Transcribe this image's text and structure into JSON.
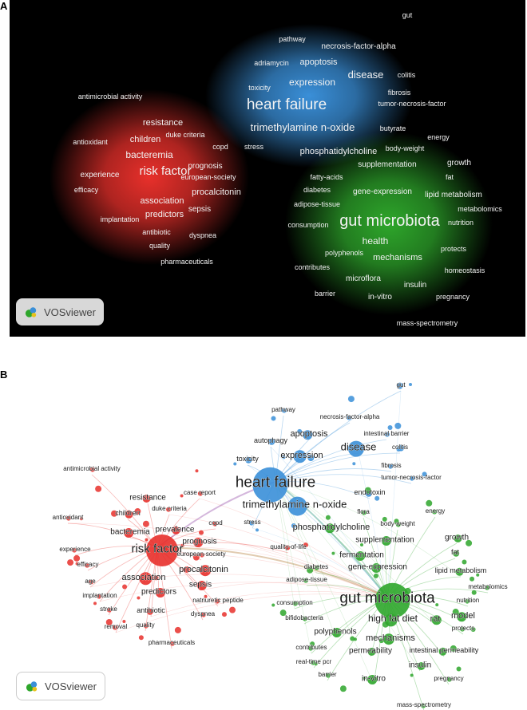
{
  "panels": {
    "a_label": "A",
    "b_label": "B",
    "watermark": "VOSviewer"
  },
  "colors": {
    "red_cluster": "#e8302b",
    "blue_cluster": "#3a8fd8",
    "green_cluster": "#2ea62b",
    "density_bg": "#000000"
  },
  "clusters": {
    "red": [
      "antimicrobial activity",
      "resistance",
      "duke criteria",
      "children",
      "antioxidant",
      "bacteremia",
      "copd",
      "risk factor",
      "prognosis",
      "experience",
      "european-society",
      "efficacy",
      "association",
      "procalcitonin",
      "predictors",
      "implantation",
      "sepsis",
      "antibiotic",
      "dyspnea",
      "quality",
      "pharmaceuticals",
      "case report",
      "prevalence",
      "age",
      "stroke",
      "removal",
      "natriuretic peptide",
      "quality-of-life"
    ],
    "blue": [
      "gut",
      "pathway",
      "necrosis-factor-alpha",
      "adriamycin",
      "apoptosis",
      "disease",
      "colitis",
      "expression",
      "toxicity",
      "fibrosis",
      "tumor-necrosis-factor",
      "heart failure",
      "trimethylamine n-oxide",
      "stress",
      "autophagy",
      "intestinal barrier",
      "endotoxin"
    ],
    "green": [
      "butyrate",
      "energy",
      "body-weight",
      "phosphatidylcholine",
      "supplementation",
      "growth",
      "fatty-acids",
      "fat",
      "diabetes",
      "gene-expression",
      "lipid metabolism",
      "adipose-tissue",
      "metabolomics",
      "gut microbiota",
      "consumption",
      "nutrition",
      "health",
      "polyphenols",
      "mechanisms",
      "protects",
      "contributes",
      "homeostasis",
      "microflora",
      "insulin",
      "barrier",
      "in-vitro",
      "pregnancy",
      "mass-spectrometry",
      "flora",
      "fermentation",
      "high fat diet",
      "rat",
      "model",
      "bifidobacteria",
      "permeability",
      "intestinal permeability",
      "real-time pcr"
    ]
  },
  "density_labels": [
    {
      "text": "gut",
      "c": "blue"
    },
    {
      "text": "pathway",
      "c": "blue"
    },
    {
      "text": "necrosis-factor-alpha",
      "c": "blue"
    },
    {
      "text": "adriamycin",
      "c": "blue"
    },
    {
      "text": "apoptosis",
      "c": "blue"
    },
    {
      "text": "disease",
      "c": "blue"
    },
    {
      "text": "colitis",
      "c": "blue"
    },
    {
      "text": "expression",
      "c": "blue"
    },
    {
      "text": "toxicity",
      "c": "blue"
    },
    {
      "text": "fibrosis",
      "c": "blue"
    },
    {
      "text": "tumor-necrosis-factor",
      "c": "blue"
    },
    {
      "text": "antimicrobial activity",
      "c": "red"
    },
    {
      "text": "heart failure",
      "c": "blue"
    },
    {
      "text": "resistance",
      "c": "red"
    },
    {
      "text": "duke criteria",
      "c": "red"
    },
    {
      "text": "trimethylamine n-oxide",
      "c": "blue"
    },
    {
      "text": "butyrate",
      "c": "green"
    },
    {
      "text": "energy",
      "c": "green"
    },
    {
      "text": "antioxidant",
      "c": "red"
    },
    {
      "text": "children",
      "c": "red"
    },
    {
      "text": "copd",
      "c": "red"
    },
    {
      "text": "stress",
      "c": "blue"
    },
    {
      "text": "body-weight",
      "c": "green"
    },
    {
      "text": "bacteremia",
      "c": "red"
    },
    {
      "text": "phosphatidylcholine",
      "c": "green"
    },
    {
      "text": "growth",
      "c": "green"
    },
    {
      "text": "prognosis",
      "c": "red"
    },
    {
      "text": "supplementation",
      "c": "green"
    },
    {
      "text": "risk factor",
      "c": "red"
    },
    {
      "text": "experience",
      "c": "red"
    },
    {
      "text": "european-society",
      "c": "red"
    },
    {
      "text": "fatty-acids",
      "c": "green"
    },
    {
      "text": "fat",
      "c": "green"
    },
    {
      "text": "efficacy",
      "c": "red"
    },
    {
      "text": "diabetes",
      "c": "green"
    },
    {
      "text": "gene-expression",
      "c": "green"
    },
    {
      "text": "lipid metabolism",
      "c": "green"
    },
    {
      "text": "association",
      "c": "red"
    },
    {
      "text": "procalcitonin",
      "c": "red"
    },
    {
      "text": "adipose-tissue",
      "c": "green"
    },
    {
      "text": "sepsis",
      "c": "red"
    },
    {
      "text": "metabolomics",
      "c": "green"
    },
    {
      "text": "predictors",
      "c": "red"
    },
    {
      "text": "implantation",
      "c": "red"
    },
    {
      "text": "gut microbiota",
      "c": "green"
    },
    {
      "text": "consumption",
      "c": "green"
    },
    {
      "text": "nutrition",
      "c": "green"
    },
    {
      "text": "antibiotic",
      "c": "red"
    },
    {
      "text": "dyspnea",
      "c": "red"
    },
    {
      "text": "health",
      "c": "green"
    },
    {
      "text": "quality",
      "c": "red"
    },
    {
      "text": "polyphenols",
      "c": "green"
    },
    {
      "text": "protects",
      "c": "green"
    },
    {
      "text": "mechanisms",
      "c": "green"
    },
    {
      "text": "pharmaceuticals",
      "c": "red"
    },
    {
      "text": "contributes",
      "c": "green"
    },
    {
      "text": "homeostasis",
      "c": "green"
    },
    {
      "text": "microflora",
      "c": "green"
    },
    {
      "text": "insulin",
      "c": "green"
    },
    {
      "text": "barrier",
      "c": "green"
    },
    {
      "text": "in-vitro",
      "c": "green"
    },
    {
      "text": "pregnancy",
      "c": "green"
    },
    {
      "text": "mass-spectrometry",
      "c": "green"
    }
  ],
  "network_labels": [
    {
      "text": "gut",
      "c": "blue"
    },
    {
      "text": "pathway",
      "c": "blue"
    },
    {
      "text": "necrosis-factor-alpha",
      "c": "blue"
    },
    {
      "text": "autophagy",
      "c": "blue"
    },
    {
      "text": "apoptosis",
      "c": "blue"
    },
    {
      "text": "intestinal barrier",
      "c": "blue"
    },
    {
      "text": "disease",
      "c": "blue"
    },
    {
      "text": "colitis",
      "c": "blue"
    },
    {
      "text": "expression",
      "c": "blue"
    },
    {
      "text": "toxicity",
      "c": "blue"
    },
    {
      "text": "fibrosis",
      "c": "blue"
    },
    {
      "text": "antimicrobial activity",
      "c": "red"
    },
    {
      "text": "heart failure",
      "c": "blue"
    },
    {
      "text": "tumor-necrosis-factor",
      "c": "blue"
    },
    {
      "text": "resistance",
      "c": "red"
    },
    {
      "text": "case report",
      "c": "red"
    },
    {
      "text": "endotoxin",
      "c": "blue"
    },
    {
      "text": "children",
      "c": "red"
    },
    {
      "text": "duke criteria",
      "c": "red"
    },
    {
      "text": "trimethylamine n-oxide",
      "c": "blue"
    },
    {
      "text": "energy",
      "c": "green"
    },
    {
      "text": "antioxidant",
      "c": "red"
    },
    {
      "text": "copd",
      "c": "red"
    },
    {
      "text": "flora",
      "c": "green"
    },
    {
      "text": "stress",
      "c": "blue"
    },
    {
      "text": "body-weight",
      "c": "green"
    },
    {
      "text": "bacteremia",
      "c": "red"
    },
    {
      "text": "prevalence",
      "c": "red"
    },
    {
      "text": "phosphatidylcholine",
      "c": "green"
    },
    {
      "text": "growth",
      "c": "green"
    },
    {
      "text": "prognosis",
      "c": "red"
    },
    {
      "text": "supplementation",
      "c": "green"
    },
    {
      "text": "experience",
      "c": "red"
    },
    {
      "text": "risk factor",
      "c": "red"
    },
    {
      "text": "quality-of-life",
      "c": "red"
    },
    {
      "text": "european-society",
      "c": "red"
    },
    {
      "text": "fermentation",
      "c": "green"
    },
    {
      "text": "fat",
      "c": "green"
    },
    {
      "text": "efficacy",
      "c": "red"
    },
    {
      "text": "diabetes",
      "c": "green"
    },
    {
      "text": "gene-expression",
      "c": "green"
    },
    {
      "text": "procalcitonin",
      "c": "red"
    },
    {
      "text": "lipid metabolism",
      "c": "green"
    },
    {
      "text": "association",
      "c": "red"
    },
    {
      "text": "adipose-tissue",
      "c": "green"
    },
    {
      "text": "sepsis",
      "c": "red"
    },
    {
      "text": "metabolomics",
      "c": "green"
    },
    {
      "text": "gut microbiota",
      "c": "green"
    },
    {
      "text": "implantation",
      "c": "red"
    },
    {
      "text": "predictors",
      "c": "red"
    },
    {
      "text": "natriuretic peptide",
      "c": "red"
    },
    {
      "text": "consumption",
      "c": "green"
    },
    {
      "text": "nutrition",
      "c": "green"
    },
    {
      "text": "stroke",
      "c": "red"
    },
    {
      "text": "antibiotic",
      "c": "red"
    },
    {
      "text": "dyspnea",
      "c": "red"
    },
    {
      "text": "high fat diet",
      "c": "green"
    },
    {
      "text": "rat",
      "c": "green"
    },
    {
      "text": "model",
      "c": "green"
    },
    {
      "text": "bifidobacteria",
      "c": "green"
    },
    {
      "text": "removal",
      "c": "red"
    },
    {
      "text": "quality",
      "c": "red"
    },
    {
      "text": "protects",
      "c": "green"
    },
    {
      "text": "polyphenols",
      "c": "green"
    },
    {
      "text": "mechanisms",
      "c": "green"
    },
    {
      "text": "pharmaceuticals",
      "c": "red"
    },
    {
      "text": "contributes",
      "c": "green"
    },
    {
      "text": "permeability",
      "c": "green"
    },
    {
      "text": "intestinal permeability",
      "c": "green"
    },
    {
      "text": "insulin",
      "c": "green"
    },
    {
      "text": "real-time pcr",
      "c": "green"
    },
    {
      "text": "barrier",
      "c": "green"
    },
    {
      "text": "in-vitro",
      "c": "green"
    },
    {
      "text": "pregnancy",
      "c": "green"
    },
    {
      "text": "mass-spectrometry",
      "c": "green"
    },
    {
      "text": "age",
      "c": "red"
    }
  ]
}
